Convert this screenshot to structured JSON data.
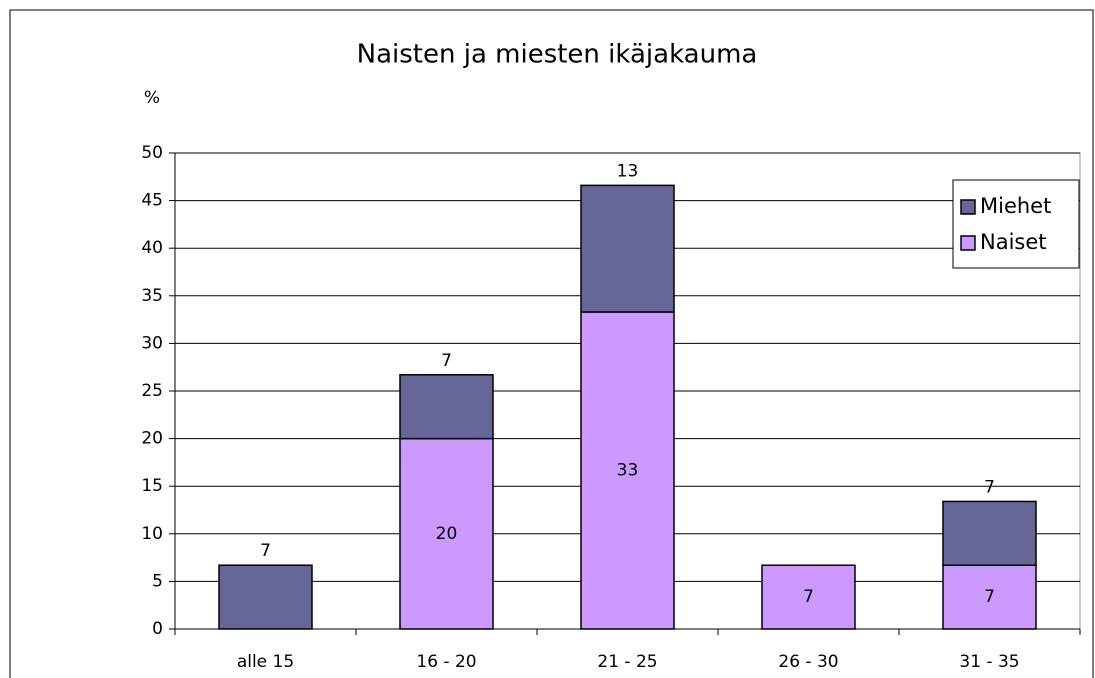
{
  "chart_data": {
    "type": "stacked_bar",
    "title": "Naisten ja miesten ikäjakauma",
    "y_label": "%",
    "categories": [
      "alle 15",
      "16 - 20",
      "21 - 25",
      "26 - 30",
      "31 - 35"
    ],
    "series": [
      {
        "name": "Naiset",
        "color": "#cc99ff",
        "values": [
          0,
          20,
          33.3,
          6.7,
          6.7
        ],
        "value_labels": [
          null,
          "20",
          "33",
          "7",
          "7"
        ]
      },
      {
        "name": "Miehet",
        "color": "#666699",
        "values": [
          6.7,
          6.7,
          13.3,
          0,
          6.7
        ],
        "value_labels": [
          "7",
          "7",
          "13",
          null,
          "7"
        ]
      }
    ],
    "ylim": [
      0,
      50
    ],
    "yticks": [
      0,
      5,
      10,
      15,
      20,
      25,
      30,
      35,
      40,
      45,
      50
    ],
    "grid": true,
    "legend": "right"
  }
}
